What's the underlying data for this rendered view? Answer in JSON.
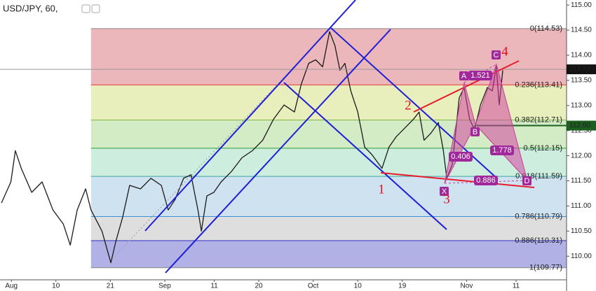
{
  "chart_data": {
    "type": "line",
    "title": "USD/JPY, 60,",
    "color": "#1a1a1a",
    "xlim": [
      -2.3,
      112.2
    ],
    "ylim": [
      109.53,
      115.1
    ],
    "xticks": [
      {
        "value": 0,
        "label": "Aug"
      },
      {
        "value": 9,
        "label": "10"
      },
      {
        "value": 20,
        "label": "21"
      },
      {
        "value": 31,
        "label": "Sep"
      },
      {
        "value": 41,
        "label": "11"
      },
      {
        "value": 50,
        "label": "20"
      },
      {
        "value": 61,
        "label": "Oct"
      },
      {
        "value": 70,
        "label": "10"
      },
      {
        "value": 79,
        "label": "19"
      },
      {
        "value": 92,
        "label": "Nov"
      },
      {
        "value": 102,
        "label": "11"
      }
    ],
    "yticks": [
      {
        "value": 110,
        "label": "110.00"
      },
      {
        "value": 110.5,
        "label": "110.50"
      },
      {
        "value": 111,
        "label": "111.00"
      },
      {
        "value": 111.5,
        "label": "111.50"
      },
      {
        "value": 112,
        "label": "112.00"
      },
      {
        "value": 112.5,
        "label": "112.50"
      },
      {
        "value": 113,
        "label": "113.00"
      },
      {
        "value": 113.5,
        "label": "113.50"
      },
      {
        "value": 114,
        "label": "114.00"
      },
      {
        "value": 114.5,
        "label": "114.50"
      },
      {
        "value": 115,
        "label": "115.00"
      }
    ],
    "x": [
      -2.0,
      -0.1,
      0.8,
      2.0,
      4.1,
      6.2,
      8.4,
      10.5,
      11.9,
      13.3,
      15.0,
      16.1,
      18.3,
      20.1,
      21.1,
      22.5,
      23.9,
      26.1,
      28.2,
      30.3,
      31.7,
      33.1,
      34.8,
      36.3,
      37.7,
      38.4,
      39.5,
      40.9,
      42.4,
      44.5,
      46.6,
      48.7,
      50.8,
      53.0,
      55.1,
      57.2,
      58.6,
      60.1,
      61.5,
      62.9,
      64.3,
      65.4,
      66.4,
      67.4,
      68.6,
      70.0,
      71.4,
      72.8,
      74.9,
      76.3,
      77.8,
      79.2,
      81.3,
      82.4,
      83.4,
      84.8,
      86.3,
      87.3,
      88.0,
      89.1,
      90.5,
      91.5,
      92.6,
      93.6,
      94.8,
      96.2,
      97.2,
      98.0,
      98.6,
      99.3
    ],
    "values": [
      111.06,
      111.48,
      112.1,
      111.75,
      111.27,
      111.48,
      110.92,
      110.64,
      110.22,
      110.92,
      111.34,
      110.92,
      110.5,
      109.87,
      110.29,
      110.78,
      111.41,
      111.34,
      111.55,
      111.41,
      110.92,
      111.13,
      111.55,
      111.62,
      110.92,
      110.5,
      111.2,
      111.27,
      111.48,
      111.69,
      111.96,
      112.1,
      112.31,
      112.73,
      113.01,
      112.87,
      113.43,
      113.84,
      113.91,
      113.77,
      114.47,
      114.19,
      113.7,
      113.84,
      113.29,
      112.87,
      112.17,
      112.03,
      111.75,
      112.17,
      112.38,
      112.52,
      112.73,
      112.87,
      112.31,
      112.45,
      112.66,
      112.1,
      111.55,
      111.82,
      113.15,
      113.36,
      112.73,
      112.52,
      113.01,
      113.36,
      113.29,
      113.77,
      113.01,
      113.7
    ],
    "fib_start_x": 16.1,
    "fib_levels": [
      {
        "label": "0(114.53)",
        "value": 114.53,
        "color": "#8a8a8a",
        "fill": "#ebb7bb"
      },
      {
        "label": "0.236(113.41)",
        "value": 113.41,
        "color": "#e53935",
        "fill": "#e9eebd"
      },
      {
        "label": "0.382(112.71)",
        "value": 112.71,
        "color": "#7cb342",
        "fill": "#d3ecc5"
      },
      {
        "label": "0.5(112.15)",
        "value": 112.15,
        "color": "#2e9e3e",
        "fill": "#cdeedf"
      },
      {
        "label": "0.618(111.59)",
        "value": 111.59,
        "color": "#3aa6a0",
        "fill": "#cfe2f0"
      },
      {
        "label": "0.786(110.79)",
        "value": 110.79,
        "color": "#3d8fd6",
        "fill": "#dedede"
      },
      {
        "label": "0.886(110.31)",
        "value": 110.31,
        "color": "#3030c0",
        "fill": "#b1b1e5"
      },
      {
        "label": "1(109.77)",
        "value": 109.77,
        "color": "#8a8a8a"
      }
    ],
    "price_markers": [
      {
        "label": "113.72",
        "value": 113.72,
        "color": "#131313"
      },
      {
        "label": "112.60",
        "value": 112.6,
        "color": "#1b5e20"
      }
    ],
    "pattern_points": [
      "X",
      "A",
      "B",
      "C",
      "D"
    ],
    "pattern_ratios": [
      1.521,
      0.406,
      1.778,
      0.886
    ],
    "wave_labels": [
      1,
      2,
      3,
      4
    ]
  }
}
